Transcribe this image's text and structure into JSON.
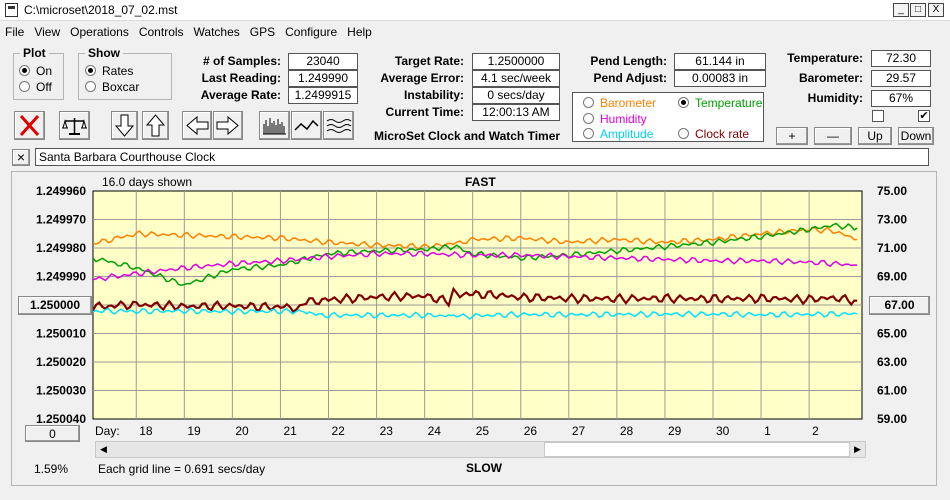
{
  "window": {
    "title": "C:\\microset\\2018_07_02.mst",
    "minimize": "_",
    "restore": "□",
    "close": "X"
  },
  "menu": [
    "File",
    "View",
    "Operations",
    "Controls",
    "Watches",
    "GPS",
    "Configure",
    "Help"
  ],
  "plot_group": {
    "caption": "Plot",
    "on": "On",
    "off": "Off",
    "selected": "On"
  },
  "show_group": {
    "caption": "Show",
    "rates": "Rates",
    "boxcar": "Boxcar",
    "selected": "Rates"
  },
  "stats": {
    "samples_label": "# of Samples:",
    "samples": "23040",
    "last_label": "Last Reading:",
    "last": "1.249990",
    "avg_label": "Average Rate:",
    "avg": "1.2499915"
  },
  "rate": {
    "target_label": "Target Rate:",
    "target": "1.2500000",
    "error_label": "Average Error:",
    "error": "4.1 sec/week",
    "instab_label": "Instability:",
    "instab": "0 secs/day",
    "time_label": "Current Time:",
    "time": "12:00:13 AM",
    "caption": "MicroSet Clock and Watch Timer"
  },
  "pend": {
    "length_label": "Pend Length:",
    "length": "61.144 in",
    "adjust_label": "Pend Adjust:",
    "adjust": "0.00083 in"
  },
  "sensor_select": {
    "barometer": "Barometer",
    "temperature": "Temperature",
    "humidity": "Humidity",
    "amplitude": "Amplitude",
    "clock_rate": "Clock rate",
    "selected": "Temperature"
  },
  "env": {
    "temp_label": "Temperature:",
    "temp": "72.30",
    "baro_label": "Barometer:",
    "baro": "29.57",
    "hum_label": "Humidity:",
    "hum": "67%",
    "check1": false,
    "check2": true,
    "plus": "+",
    "minus": "—",
    "up": "Up",
    "down": "Down"
  },
  "clock_name": {
    "close": "×",
    "value": "Santa Barbara Courthouse Clock"
  },
  "plot": {
    "days_shown": "16.0 days shown",
    "top": "FAST",
    "bottom": "SLOW",
    "grid_note": "Each grid line = 0.691 secs/day",
    "percent": "1.59%",
    "left_center_button": "1.250000",
    "right_center_button": "67.00",
    "bottom_button": "0",
    "day_label": "Day:"
  },
  "chart_data": {
    "type": "line",
    "x_unit": "day",
    "x_labels": [
      "18",
      "19",
      "20",
      "21",
      "22",
      "23",
      "24",
      "25",
      "26",
      "27",
      "28",
      "29",
      "30",
      "1",
      "2"
    ],
    "x_range": [
      17.1,
      33.1
    ],
    "y_left": {
      "ticks": [
        "1.249960",
        "1.249970",
        "1.249980",
        "1.249990",
        "1.250000",
        "1.250010",
        "1.250020",
        "1.250030",
        "1.250040"
      ],
      "range": [
        1.24996,
        1.25004
      ],
      "inverted": true
    },
    "y_right": {
      "ticks": [
        "75.00",
        "73.00",
        "71.00",
        "69.00",
        "67.00",
        "65.00",
        "63.00",
        "61.00",
        "59.00"
      ],
      "range": [
        59,
        75
      ]
    },
    "grid": true,
    "series": [
      {
        "color": "#ff8000",
        "axis": "right",
        "x": [
          17.1,
          18,
          19,
          20,
          21,
          22,
          23,
          24,
          24.6,
          25,
          26,
          27,
          28,
          29,
          30,
          31,
          32,
          32.5,
          33
        ],
        "y": [
          71.3,
          72,
          71.9,
          71.8,
          71.7,
          71.4,
          71.2,
          71.1,
          71.3,
          71.6,
          71.7,
          71.4,
          71.6,
          71.4,
          71.6,
          72,
          72.3,
          72.2,
          71.6
        ]
      },
      {
        "color": "#00a000",
        "axis": "right",
        "x": [
          17.1,
          18,
          19,
          20,
          21,
          22,
          23,
          24,
          24.6,
          25,
          26,
          27,
          28,
          29,
          30,
          31,
          32,
          32.5,
          33
        ],
        "y": [
          70.3,
          69.6,
          68.4,
          69.5,
          69.8,
          70.6,
          70.8,
          70.9,
          71.1,
          70.6,
          70.3,
          70.5,
          70.8,
          71.1,
          71.4,
          71.8,
          72.3,
          72.6,
          72.4
        ]
      },
      {
        "color": "#e000e0",
        "axis": "right",
        "x": [
          17.1,
          18,
          19,
          20,
          21,
          22,
          23,
          24,
          25,
          26,
          27,
          28,
          29,
          30,
          31,
          32,
          33
        ],
        "y": [
          68.8,
          69.2,
          69.6,
          69.9,
          70.1,
          70.4,
          70.6,
          70.6,
          70.5,
          70.5,
          70.4,
          70.3,
          70.2,
          70.1,
          70.1,
          70.0,
          69.8
        ]
      },
      {
        "color": "#800000",
        "axis": "left",
        "x": [
          17.1,
          18,
          19,
          20,
          21,
          21.4,
          21.6,
          22,
          23,
          24,
          24.5,
          24.6,
          25,
          25.5,
          26,
          27,
          28,
          29,
          30,
          31,
          32,
          32.5,
          33
        ],
        "y": [
          1.2500007,
          1.2499998,
          1.2500005,
          1.2500003,
          1.2500008,
          1.2500009,
          1.2499985,
          1.2499982,
          1.2499972,
          1.2499968,
          1.2499988,
          1.2499958,
          1.2499962,
          1.2499965,
          1.2499973,
          1.2499977,
          1.2499978,
          1.2499977,
          1.2499978,
          1.2499977,
          1.249998,
          1.2499975,
          1.2499985
        ]
      },
      {
        "color": "#00e0ff",
        "axis": "left",
        "x": [
          17.1,
          18,
          19,
          20,
          21,
          21.5,
          21.6,
          22,
          23,
          24,
          24.5,
          24.6,
          25,
          26,
          27,
          28,
          29,
          30,
          31,
          32,
          33
        ],
        "y": [
          1.2500021,
          1.2500022,
          1.2500021,
          1.2500023,
          1.2500022,
          1.2500023,
          1.2500032,
          1.2500036,
          1.2500036,
          1.2500036,
          1.2500038,
          1.250004,
          1.2500038,
          1.2500033,
          1.2500034,
          1.2500033,
          1.2500032,
          1.2500032,
          1.2500034,
          1.2500033,
          1.2500031
        ]
      }
    ]
  }
}
